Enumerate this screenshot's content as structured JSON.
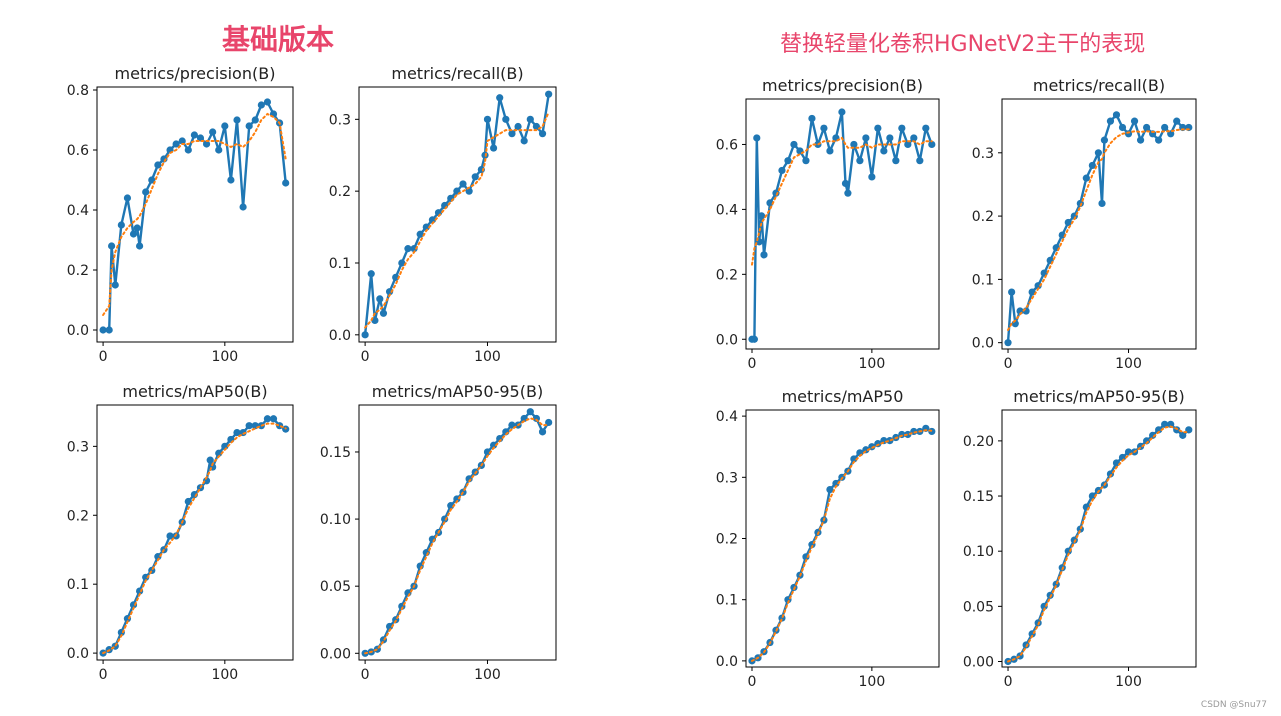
{
  "headings": {
    "left": "基础版本",
    "right": "替换轻量化卷积HGNetV2主干的表现"
  },
  "watermark": "CSDN @Snu77",
  "colors": {
    "heading": "#e8456b",
    "series": "#1f77b4",
    "smooth": "#ff7f0e"
  },
  "chart_data": [
    {
      "group": "left",
      "type": "line",
      "title": "metrics/precision(B)",
      "xlim": [
        -5,
        156
      ],
      "ylim": [
        -0.04,
        0.81
      ],
      "xticks": [
        0,
        100
      ],
      "xtick_labels": [
        "0",
        "100"
      ],
      "yticks": [
        0.0,
        0.2,
        0.4,
        0.6,
        0.8
      ],
      "ytick_labels": [
        "0.0",
        "0.2",
        "0.4",
        "0.6",
        "0.8"
      ],
      "x": [
        0,
        5,
        7,
        10,
        15,
        20,
        25,
        28,
        30,
        35,
        40,
        45,
        50,
        55,
        60,
        65,
        70,
        75,
        80,
        85,
        90,
        95,
        100,
        105,
        110,
        115,
        120,
        125,
        130,
        135,
        140,
        145,
        150
      ],
      "y": [
        0.0,
        0.0,
        0.28,
        0.15,
        0.35,
        0.44,
        0.32,
        0.34,
        0.28,
        0.46,
        0.5,
        0.55,
        0.57,
        0.6,
        0.62,
        0.63,
        0.6,
        0.65,
        0.64,
        0.62,
        0.66,
        0.6,
        0.68,
        0.5,
        0.7,
        0.41,
        0.68,
        0.7,
        0.75,
        0.76,
        0.72,
        0.69,
        0.49
      ],
      "smooth": [
        0.05,
        0.08,
        0.2,
        0.26,
        0.31,
        0.34,
        0.36,
        0.37,
        0.38,
        0.42,
        0.47,
        0.52,
        0.56,
        0.59,
        0.6,
        0.62,
        0.62,
        0.63,
        0.63,
        0.63,
        0.63,
        0.63,
        0.62,
        0.61,
        0.62,
        0.61,
        0.63,
        0.66,
        0.7,
        0.72,
        0.71,
        0.69,
        0.57
      ]
    },
    {
      "group": "left",
      "type": "line",
      "title": "metrics/recall(B)",
      "xlim": [
        -5,
        156
      ],
      "ylim": [
        -0.01,
        0.345
      ],
      "xticks": [
        0,
        100
      ],
      "xtick_labels": [
        "0",
        "100"
      ],
      "yticks": [
        0.0,
        0.1,
        0.2,
        0.3
      ],
      "ytick_labels": [
        "0.0",
        "0.1",
        "0.2",
        "0.3"
      ],
      "x": [
        0,
        5,
        8,
        12,
        15,
        20,
        25,
        30,
        35,
        40,
        45,
        50,
        55,
        60,
        65,
        70,
        75,
        80,
        85,
        90,
        95,
        98,
        100,
        105,
        110,
        115,
        120,
        125,
        130,
        135,
        140,
        145,
        150
      ],
      "y": [
        0.0,
        0.085,
        0.02,
        0.05,
        0.03,
        0.06,
        0.08,
        0.1,
        0.12,
        0.12,
        0.14,
        0.15,
        0.16,
        0.17,
        0.18,
        0.19,
        0.2,
        0.21,
        0.2,
        0.22,
        0.23,
        0.25,
        0.3,
        0.26,
        0.33,
        0.3,
        0.28,
        0.29,
        0.27,
        0.3,
        0.29,
        0.28,
        0.335
      ],
      "smooth": [
        0.01,
        0.02,
        0.03,
        0.035,
        0.04,
        0.055,
        0.07,
        0.09,
        0.105,
        0.115,
        0.13,
        0.145,
        0.155,
        0.165,
        0.175,
        0.185,
        0.195,
        0.2,
        0.205,
        0.21,
        0.22,
        0.24,
        0.27,
        0.275,
        0.28,
        0.285,
        0.285,
        0.285,
        0.285,
        0.285,
        0.285,
        0.29,
        0.31
      ]
    },
    {
      "group": "left",
      "type": "line",
      "title": "metrics/mAP50(B)",
      "xlim": [
        -5,
        156
      ],
      "ylim": [
        -0.01,
        0.36
      ],
      "xticks": [
        0,
        100
      ],
      "xtick_labels": [
        "0",
        "100"
      ],
      "yticks": [
        0.0,
        0.1,
        0.2,
        0.3
      ],
      "ytick_labels": [
        "0.0",
        "0.1",
        "0.2",
        "0.3"
      ],
      "x": [
        0,
        5,
        10,
        15,
        20,
        25,
        30,
        35,
        40,
        45,
        50,
        55,
        60,
        65,
        70,
        75,
        80,
        85,
        88,
        90,
        95,
        100,
        105,
        110,
        115,
        120,
        125,
        130,
        135,
        140,
        145,
        150
      ],
      "y": [
        0.0,
        0.005,
        0.01,
        0.03,
        0.05,
        0.07,
        0.09,
        0.11,
        0.12,
        0.14,
        0.15,
        0.17,
        0.17,
        0.19,
        0.22,
        0.23,
        0.24,
        0.25,
        0.28,
        0.27,
        0.29,
        0.3,
        0.31,
        0.32,
        0.32,
        0.33,
        0.33,
        0.33,
        0.34,
        0.34,
        0.33,
        0.325
      ],
      "smooth": [
        0.0,
        0.004,
        0.01,
        0.025,
        0.045,
        0.065,
        0.085,
        0.105,
        0.12,
        0.135,
        0.15,
        0.16,
        0.172,
        0.19,
        0.21,
        0.225,
        0.24,
        0.255,
        0.265,
        0.275,
        0.285,
        0.295,
        0.305,
        0.313,
        0.318,
        0.322,
        0.326,
        0.33,
        0.333,
        0.333,
        0.33,
        0.326
      ]
    },
    {
      "group": "left",
      "type": "line",
      "title": "metrics/mAP50-95(B)",
      "xlim": [
        -5,
        156
      ],
      "ylim": [
        -0.005,
        0.185
      ],
      "xticks": [
        0,
        100
      ],
      "xtick_labels": [
        "0",
        "100"
      ],
      "yticks": [
        0.0,
        0.05,
        0.1,
        0.15
      ],
      "ytick_labels": [
        "0.00",
        "0.05",
        "0.10",
        "0.15"
      ],
      "x": [
        0,
        5,
        10,
        15,
        20,
        25,
        30,
        35,
        40,
        45,
        50,
        55,
        60,
        65,
        70,
        75,
        80,
        85,
        90,
        95,
        100,
        105,
        110,
        115,
        120,
        125,
        130,
        135,
        140,
        145,
        150
      ],
      "y": [
        0.0,
        0.001,
        0.003,
        0.01,
        0.02,
        0.025,
        0.035,
        0.045,
        0.05,
        0.065,
        0.075,
        0.085,
        0.09,
        0.1,
        0.11,
        0.115,
        0.12,
        0.13,
        0.135,
        0.14,
        0.15,
        0.155,
        0.16,
        0.165,
        0.17,
        0.17,
        0.175,
        0.18,
        0.175,
        0.165,
        0.172
      ],
      "smooth": [
        0.0,
        0.001,
        0.003,
        0.009,
        0.017,
        0.024,
        0.033,
        0.042,
        0.05,
        0.062,
        0.072,
        0.082,
        0.09,
        0.098,
        0.107,
        0.113,
        0.12,
        0.128,
        0.134,
        0.14,
        0.147,
        0.153,
        0.158,
        0.163,
        0.167,
        0.17,
        0.173,
        0.175,
        0.174,
        0.17,
        0.17
      ]
    },
    {
      "group": "right",
      "type": "line",
      "title": "metrics/precision(B)",
      "xlim": [
        -5,
        156
      ],
      "ylim": [
        -0.03,
        0.74
      ],
      "xticks": [
        0,
        100
      ],
      "xtick_labels": [
        "0",
        "100"
      ],
      "yticks": [
        0.0,
        0.2,
        0.4,
        0.6
      ],
      "ytick_labels": [
        "0.0",
        "0.2",
        "0.4",
        "0.6"
      ],
      "x": [
        0,
        2,
        4,
        6,
        8,
        10,
        15,
        20,
        25,
        30,
        35,
        40,
        45,
        50,
        55,
        60,
        65,
        70,
        75,
        78,
        80,
        85,
        90,
        95,
        100,
        105,
        110,
        115,
        120,
        125,
        130,
        135,
        140,
        145,
        150
      ],
      "y": [
        0.0,
        0.0,
        0.62,
        0.3,
        0.38,
        0.26,
        0.42,
        0.45,
        0.52,
        0.55,
        0.6,
        0.58,
        0.55,
        0.68,
        0.6,
        0.65,
        0.58,
        0.62,
        0.7,
        0.48,
        0.45,
        0.6,
        0.55,
        0.62,
        0.5,
        0.65,
        0.58,
        0.62,
        0.55,
        0.65,
        0.6,
        0.62,
        0.55,
        0.65,
        0.6
      ],
      "smooth": [
        0.23,
        0.28,
        0.3,
        0.33,
        0.36,
        0.37,
        0.4,
        0.44,
        0.48,
        0.52,
        0.56,
        0.57,
        0.58,
        0.6,
        0.6,
        0.61,
        0.61,
        0.61,
        0.62,
        0.6,
        0.59,
        0.59,
        0.59,
        0.6,
        0.59,
        0.6,
        0.6,
        0.6,
        0.6,
        0.61,
        0.61,
        0.61,
        0.6,
        0.61,
        0.61
      ]
    },
    {
      "group": "right",
      "type": "line",
      "title": "metrics/recall(B)",
      "xlim": [
        -5,
        156
      ],
      "ylim": [
        -0.01,
        0.385
      ],
      "xticks": [
        0,
        100
      ],
      "xtick_labels": [
        "0",
        "100"
      ],
      "yticks": [
        0.0,
        0.1,
        0.2,
        0.3
      ],
      "ytick_labels": [
        "0.0",
        "0.1",
        "0.2",
        "0.3"
      ],
      "x": [
        0,
        3,
        6,
        10,
        15,
        20,
        25,
        30,
        35,
        40,
        45,
        50,
        55,
        60,
        65,
        70,
        75,
        78,
        80,
        85,
        90,
        95,
        100,
        105,
        110,
        115,
        120,
        125,
        130,
        135,
        140,
        145,
        150
      ],
      "y": [
        0.0,
        0.08,
        0.03,
        0.05,
        0.05,
        0.08,
        0.09,
        0.11,
        0.13,
        0.15,
        0.17,
        0.19,
        0.2,
        0.22,
        0.26,
        0.28,
        0.3,
        0.22,
        0.32,
        0.35,
        0.36,
        0.34,
        0.33,
        0.35,
        0.32,
        0.34,
        0.33,
        0.32,
        0.34,
        0.33,
        0.35,
        0.34,
        0.34
      ],
      "smooth": [
        0.02,
        0.03,
        0.035,
        0.045,
        0.055,
        0.07,
        0.085,
        0.1,
        0.12,
        0.14,
        0.16,
        0.18,
        0.195,
        0.215,
        0.24,
        0.265,
        0.285,
        0.29,
        0.3,
        0.315,
        0.325,
        0.33,
        0.332,
        0.334,
        0.333,
        0.334,
        0.333,
        0.333,
        0.334,
        0.334,
        0.336,
        0.337,
        0.337
      ]
    },
    {
      "group": "right",
      "type": "line",
      "title": "metrics/mAP50",
      "xlim": [
        -5,
        156
      ],
      "ylim": [
        -0.01,
        0.41
      ],
      "xticks": [
        0,
        100
      ],
      "xtick_labels": [
        "0",
        "100"
      ],
      "yticks": [
        0.0,
        0.1,
        0.2,
        0.3,
        0.4
      ],
      "ytick_labels": [
        "0.0",
        "0.1",
        "0.2",
        "0.3",
        "0.4"
      ],
      "x": [
        0,
        5,
        10,
        15,
        20,
        25,
        30,
        35,
        40,
        45,
        50,
        55,
        60,
        65,
        70,
        75,
        80,
        85,
        90,
        95,
        100,
        105,
        110,
        115,
        120,
        125,
        130,
        135,
        140,
        145,
        150
      ],
      "y": [
        0.0,
        0.005,
        0.015,
        0.03,
        0.05,
        0.07,
        0.1,
        0.12,
        0.14,
        0.17,
        0.19,
        0.21,
        0.23,
        0.28,
        0.29,
        0.3,
        0.31,
        0.33,
        0.34,
        0.345,
        0.35,
        0.355,
        0.36,
        0.36,
        0.365,
        0.37,
        0.37,
        0.375,
        0.375,
        0.38,
        0.375
      ],
      "smooth": [
        0.0,
        0.005,
        0.014,
        0.029,
        0.048,
        0.069,
        0.095,
        0.117,
        0.138,
        0.163,
        0.186,
        0.207,
        0.23,
        0.265,
        0.285,
        0.298,
        0.31,
        0.325,
        0.335,
        0.343,
        0.348,
        0.353,
        0.357,
        0.36,
        0.364,
        0.368,
        0.37,
        0.373,
        0.375,
        0.377,
        0.376
      ]
    },
    {
      "group": "right",
      "type": "line",
      "title": "metrics/mAP50-95(B)",
      "xlim": [
        -5,
        156
      ],
      "ylim": [
        -0.005,
        0.228
      ],
      "xticks": [
        0,
        100
      ],
      "xtick_labels": [
        "0",
        "100"
      ],
      "yticks": [
        0.0,
        0.05,
        0.1,
        0.15,
        0.2
      ],
      "ytick_labels": [
        "0.00",
        "0.05",
        "0.10",
        "0.15",
        "0.20"
      ],
      "x": [
        0,
        5,
        10,
        15,
        20,
        25,
        30,
        35,
        40,
        45,
        50,
        55,
        60,
        65,
        70,
        75,
        80,
        85,
        90,
        95,
        100,
        105,
        110,
        115,
        120,
        125,
        130,
        135,
        140,
        145,
        150
      ],
      "y": [
        0.0,
        0.002,
        0.005,
        0.015,
        0.025,
        0.035,
        0.05,
        0.06,
        0.07,
        0.085,
        0.1,
        0.11,
        0.12,
        0.14,
        0.15,
        0.155,
        0.16,
        0.17,
        0.18,
        0.185,
        0.19,
        0.19,
        0.195,
        0.2,
        0.205,
        0.21,
        0.215,
        0.215,
        0.21,
        0.205,
        0.21
      ],
      "smooth": [
        0.0,
        0.002,
        0.005,
        0.013,
        0.023,
        0.033,
        0.047,
        0.058,
        0.069,
        0.083,
        0.097,
        0.108,
        0.119,
        0.135,
        0.146,
        0.154,
        0.16,
        0.168,
        0.176,
        0.182,
        0.187,
        0.19,
        0.194,
        0.198,
        0.203,
        0.208,
        0.212,
        0.213,
        0.211,
        0.208,
        0.208
      ]
    }
  ]
}
